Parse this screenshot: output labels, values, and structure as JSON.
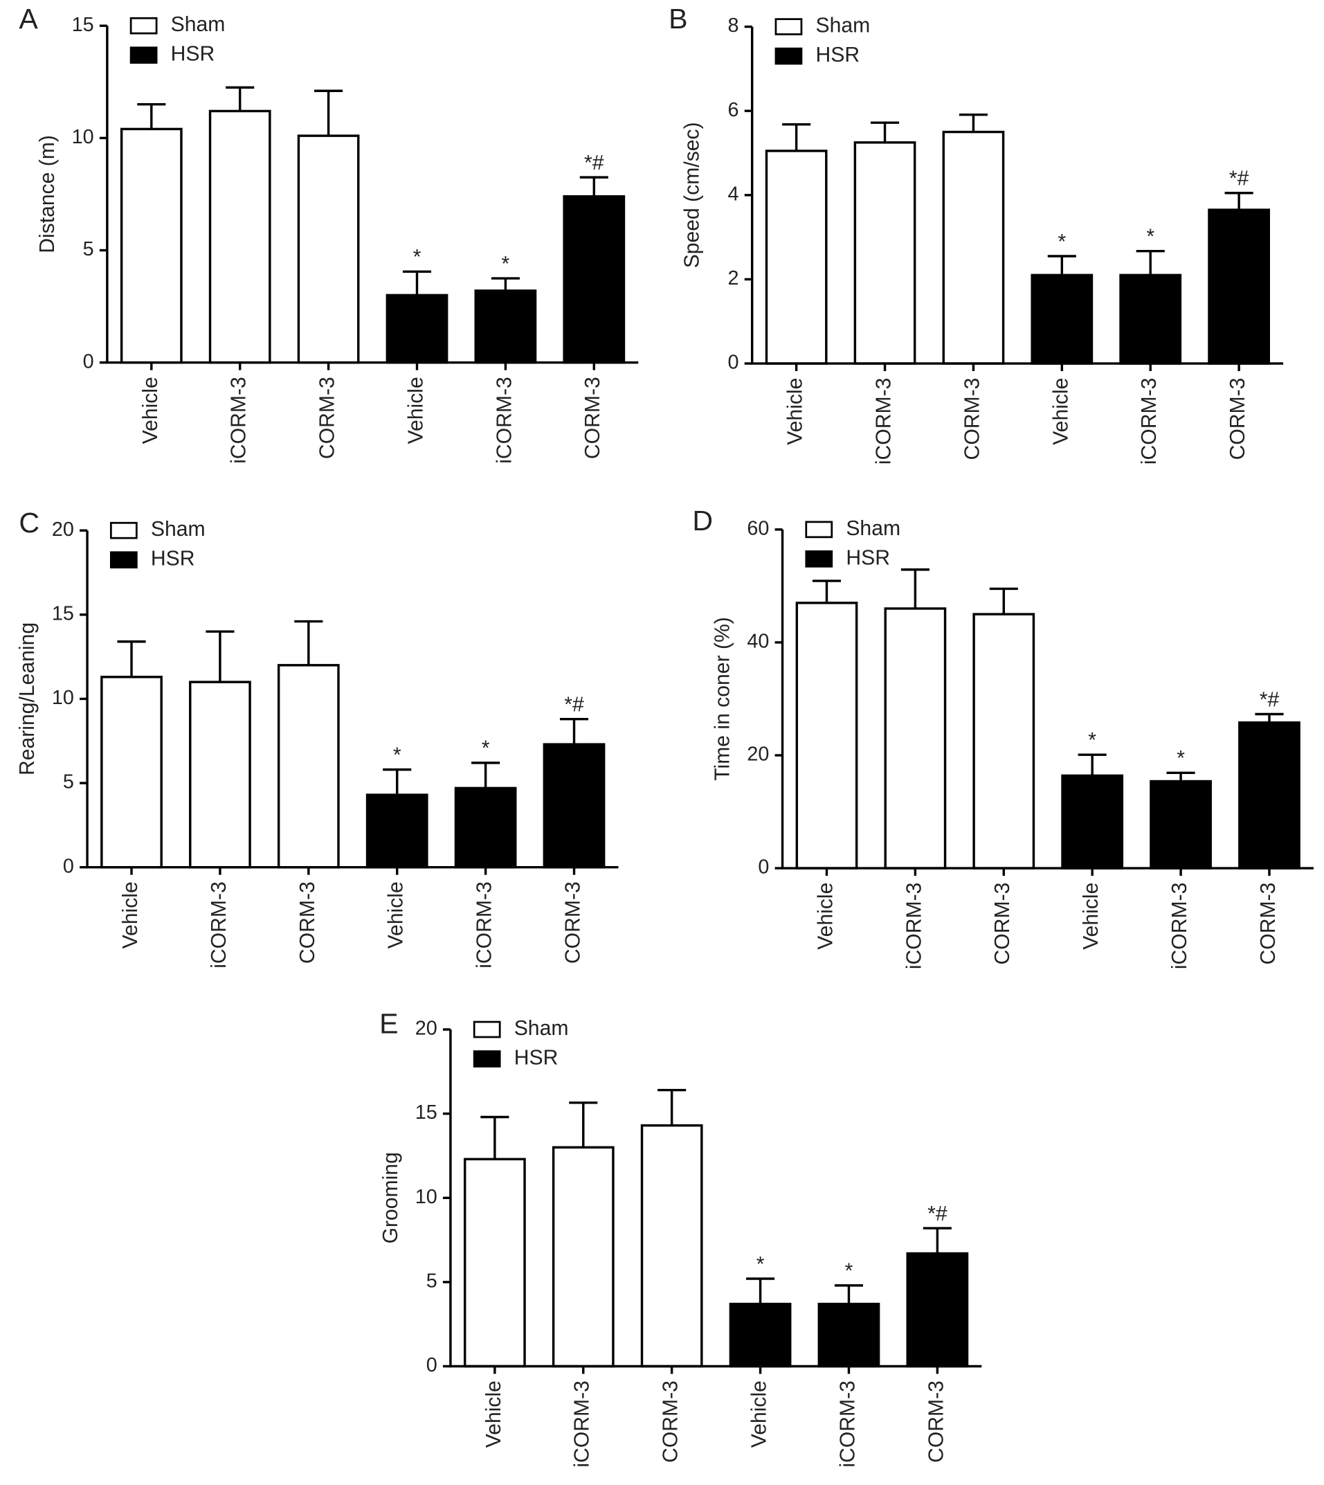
{
  "chart_data": [
    {
      "type": "bar",
      "title": "A",
      "ylabel": "Distance (m)",
      "categories": [
        "Vehicle",
        "iCORM-3",
        "CORM-3",
        "Vehicle",
        "iCORM-3",
        "CORM-3"
      ],
      "ylim": [
        0,
        15
      ],
      "yticks": [
        0,
        5,
        10,
        15
      ],
      "series": [
        {
          "name": "Sham",
          "color": "#ffffff",
          "values": [
            10.4,
            11.2,
            10.1,
            null,
            null,
            null
          ],
          "errors": [
            1.1,
            1.05,
            2.0,
            null,
            null,
            null
          ],
          "annotations": [
            null,
            null,
            null,
            null,
            null,
            null
          ]
        },
        {
          "name": "HSR",
          "color": "#000000",
          "values": [
            null,
            null,
            null,
            3.0,
            3.2,
            7.4
          ],
          "errors": [
            null,
            null,
            null,
            1.05,
            0.55,
            0.85
          ],
          "annotations": [
            null,
            null,
            null,
            "*",
            "*",
            "*#"
          ]
        }
      ]
    },
    {
      "type": "bar",
      "title": "B",
      "ylabel": "Speed (cm/sec)",
      "categories": [
        "Vehicle",
        "iCORM-3",
        "CORM-3",
        "Vehicle",
        "iCORM-3",
        "CORM-3"
      ],
      "ylim": [
        0,
        8
      ],
      "yticks": [
        0,
        2,
        4,
        6,
        8
      ],
      "series": [
        {
          "name": "Sham",
          "color": "#ffffff",
          "values": [
            5.05,
            5.25,
            5.5,
            null,
            null,
            null
          ],
          "errors": [
            0.63,
            0.47,
            0.41,
            null,
            null,
            null
          ],
          "annotations": [
            null,
            null,
            null,
            null,
            null,
            null
          ]
        },
        {
          "name": "HSR",
          "color": "#000000",
          "values": [
            null,
            null,
            null,
            2.1,
            2.1,
            3.65
          ],
          "errors": [
            null,
            null,
            null,
            0.45,
            0.57,
            0.4
          ],
          "annotations": [
            null,
            null,
            null,
            "*",
            "*",
            "*#"
          ]
        }
      ]
    },
    {
      "type": "bar",
      "title": "C",
      "ylabel": "Rearing/Leaning",
      "categories": [
        "Vehicle",
        "iCORM-3",
        "CORM-3",
        "Vehicle",
        "iCORM-3",
        "CORM-3"
      ],
      "ylim": [
        0,
        20
      ],
      "yticks": [
        0,
        5,
        10,
        15,
        20
      ],
      "series": [
        {
          "name": "Sham",
          "color": "#ffffff",
          "values": [
            11.3,
            11.0,
            12.0,
            null,
            null,
            null
          ],
          "errors": [
            2.1,
            3.0,
            2.6,
            null,
            null,
            null
          ],
          "annotations": [
            null,
            null,
            null,
            null,
            null,
            null
          ]
        },
        {
          "name": "HSR",
          "color": "#000000",
          "values": [
            null,
            null,
            null,
            4.3,
            4.7,
            7.3
          ],
          "errors": [
            null,
            null,
            null,
            1.5,
            1.5,
            1.5
          ],
          "annotations": [
            null,
            null,
            null,
            "*",
            "*",
            "*#"
          ]
        }
      ]
    },
    {
      "type": "bar",
      "title": "D",
      "ylabel": "Time in coner (%)",
      "categories": [
        "Vehicle",
        "iCORM-3",
        "CORM-3",
        "Vehicle",
        "iCORM-3",
        "CORM-3"
      ],
      "ylim": [
        0,
        60
      ],
      "yticks": [
        0,
        20,
        40,
        60
      ],
      "series": [
        {
          "name": "Sham",
          "color": "#ffffff",
          "values": [
            47,
            46,
            45,
            null,
            null,
            null
          ],
          "errors": [
            3.9,
            6.9,
            4.5,
            null,
            null,
            null
          ],
          "annotations": [
            null,
            null,
            null,
            null,
            null,
            null
          ]
        },
        {
          "name": "HSR",
          "color": "#000000",
          "values": [
            null,
            null,
            null,
            16.4,
            15.4,
            25.8
          ],
          "errors": [
            null,
            null,
            null,
            3.7,
            1.5,
            1.5
          ],
          "annotations": [
            null,
            null,
            null,
            "*",
            "*",
            "*#"
          ]
        }
      ]
    },
    {
      "type": "bar",
      "title": "E",
      "ylabel": "Grooming",
      "categories": [
        "Vehicle",
        "iCORM-3",
        "CORM-3",
        "Vehicle",
        "iCORM-3",
        "CORM-3"
      ],
      "ylim": [
        0,
        20
      ],
      "yticks": [
        0,
        5,
        10,
        15,
        20
      ],
      "series": [
        {
          "name": "Sham",
          "color": "#ffffff",
          "values": [
            12.3,
            13.0,
            14.3,
            null,
            null,
            null
          ],
          "errors": [
            2.5,
            2.65,
            2.1,
            null,
            null,
            null
          ],
          "annotations": [
            null,
            null,
            null,
            null,
            null,
            null
          ]
        },
        {
          "name": "HSR",
          "color": "#000000",
          "values": [
            null,
            null,
            null,
            3.7,
            3.7,
            6.7
          ],
          "errors": [
            null,
            null,
            null,
            1.5,
            1.1,
            1.5
          ],
          "annotations": [
            null,
            null,
            null,
            "*",
            "*",
            "*#"
          ]
        }
      ]
    }
  ]
}
